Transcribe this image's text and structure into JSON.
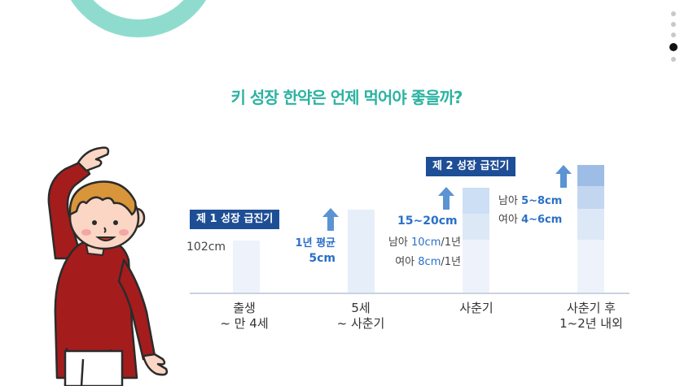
{
  "title": "키 성장 한약은 언제 먹어야 좋을까?",
  "pagination": {
    "total": 5,
    "active_index": 3
  },
  "stages": [
    {
      "badge": "",
      "x_label_1": "출생",
      "x_label_2": "~ 만 4세",
      "value": "102cm"
    },
    {
      "badge": "제 1 성장  급진기",
      "x_label_1": "5세",
      "x_label_2": "~ 사춘기",
      "rate_1": "1년 평균",
      "rate_2": "5cm"
    },
    {
      "badge": "",
      "x_label_1": "사춘기",
      "x_label_2": "",
      "total": "15~20cm",
      "boy_prefix": "남아 ",
      "boy_value": "10cm",
      "boy_suffix": "/1년",
      "girl_prefix": "여아 ",
      "girl_value": "8cm",
      "girl_suffix": "/1년"
    },
    {
      "badge": "제 2 성장  급진기",
      "x_label_1": "사춘기 후",
      "x_label_2": "1~2년 내외",
      "boy_prefix": "남아 ",
      "boy_value": "5~8cm",
      "girl_prefix": "여아 ",
      "girl_value": "4~6cm"
    }
  ],
  "colors": {
    "accent": "#2cb3a1",
    "ring": "#8fdccf",
    "badge": "#1e4e96",
    "value_blue": "#2a70c8",
    "arrow": "#5b93d3"
  }
}
